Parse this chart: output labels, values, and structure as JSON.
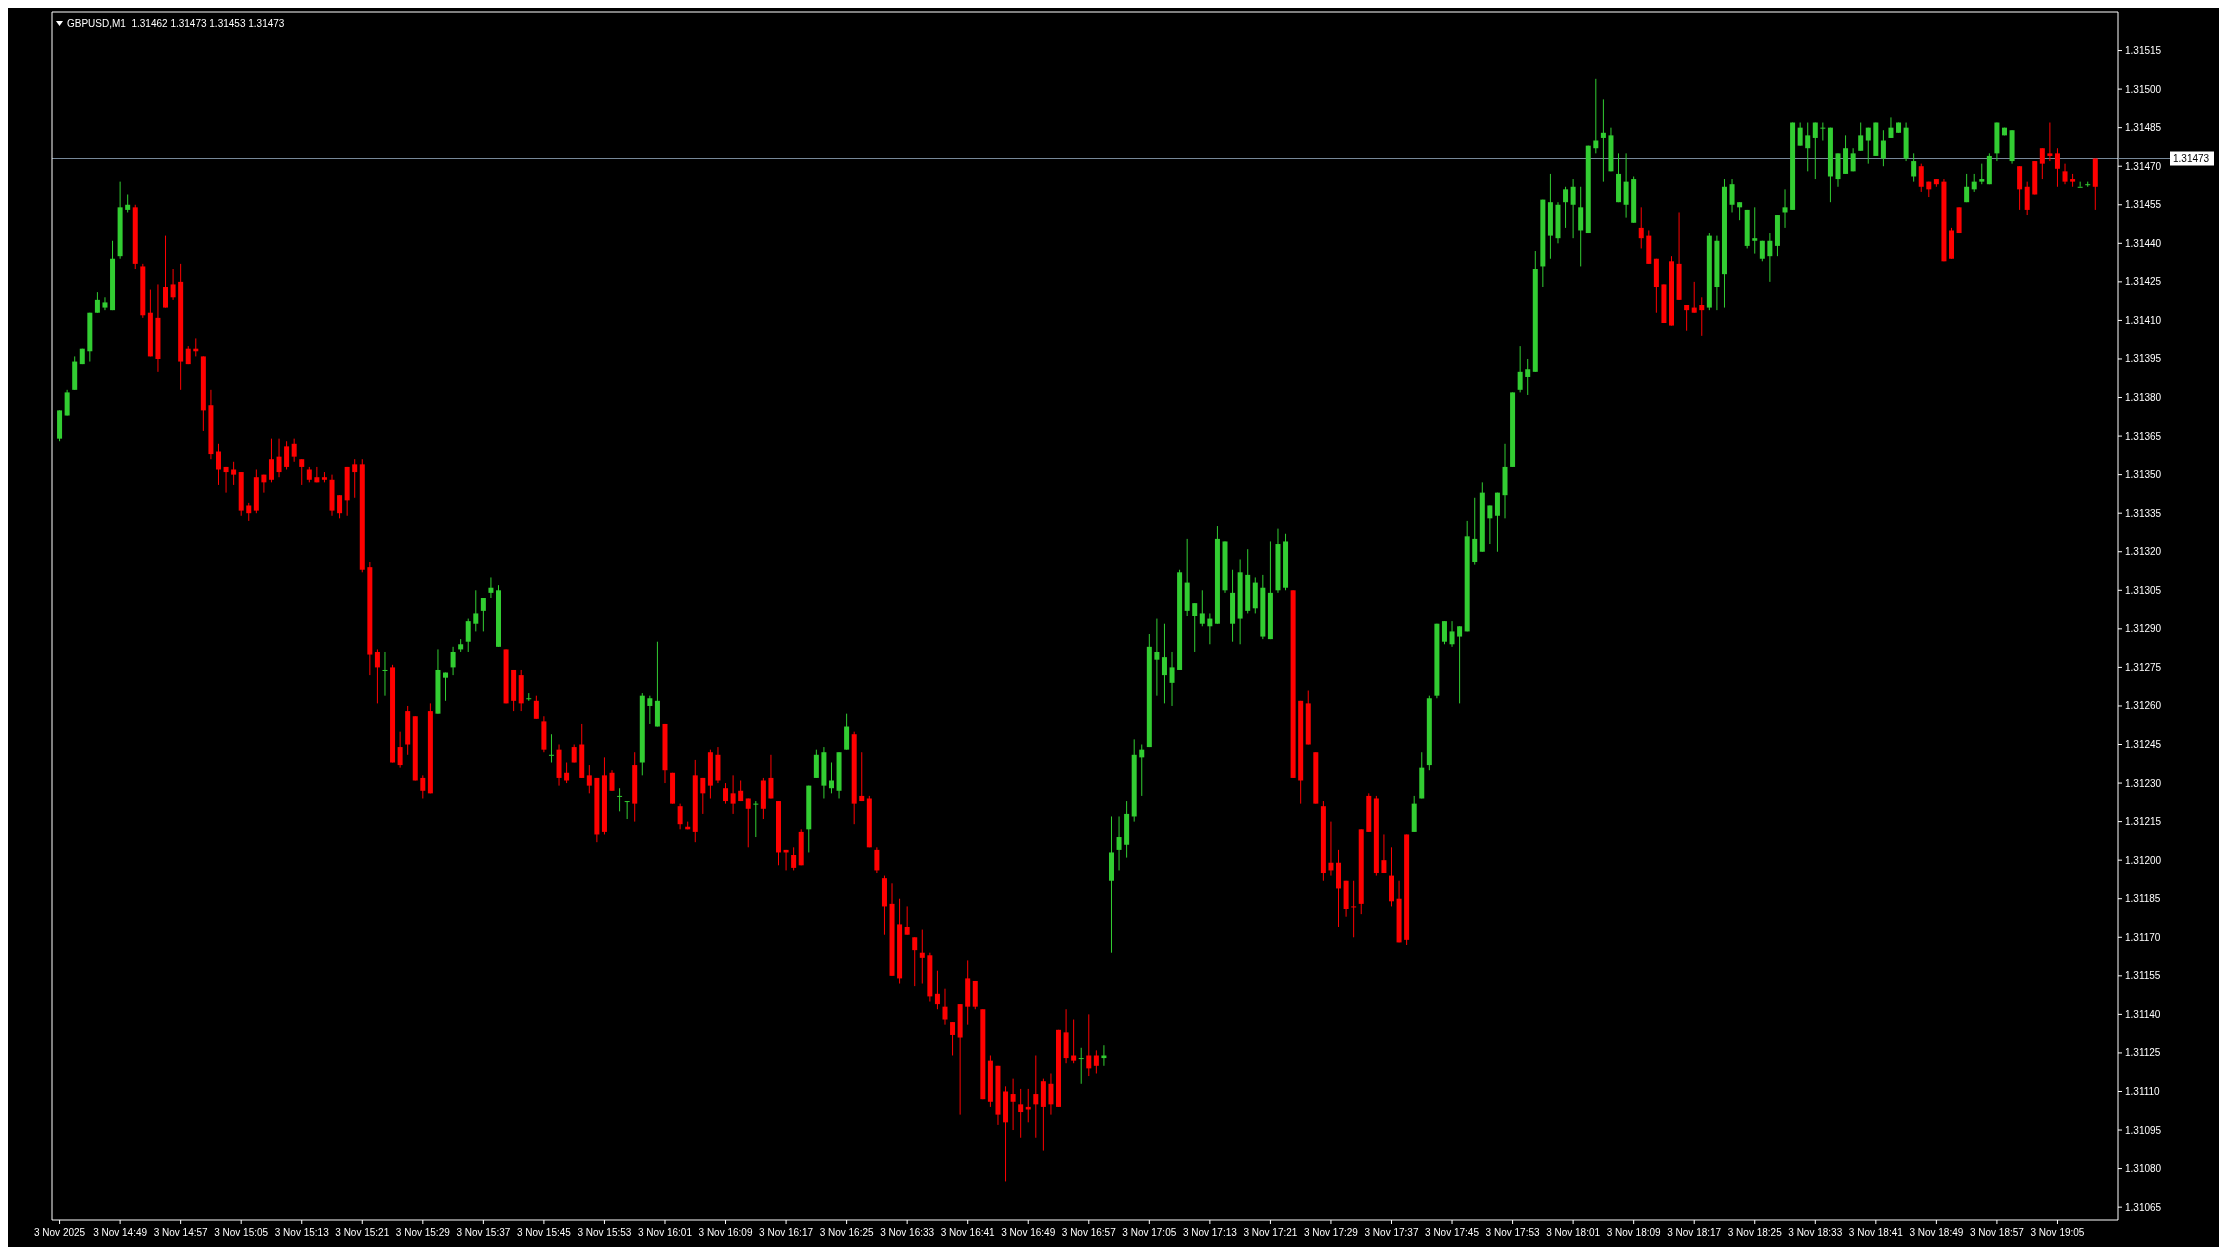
{
  "chart_data": {
    "type": "candlestick",
    "title": "GBPUSD,M1  1.31462 1.31473 1.31453 1.31473",
    "x": [
      "2025-11-03T14:41",
      "2025-11-03T14:42",
      "2025-11-03T14:43",
      "2025-11-03T14:44",
      "2025-11-03T14:45",
      "2025-11-03T14:46",
      "2025-11-03T14:47",
      "2025-11-03T14:48",
      "2025-11-03T14:49",
      "2025-11-03T14:50",
      "2025-11-03T14:51",
      "2025-11-03T14:52",
      "2025-11-03T14:53",
      "2025-11-03T14:54",
      "2025-11-03T14:55",
      "2025-11-03T14:56",
      "2025-11-03T14:57",
      "2025-11-03T14:58",
      "2025-11-03T14:59",
      "2025-11-03T15:00",
      "2025-11-03T15:01",
      "2025-11-03T15:02",
      "2025-11-03T15:03",
      "2025-11-03T15:04",
      "2025-11-03T15:05",
      "2025-11-03T15:06",
      "2025-11-03T15:07",
      "2025-11-03T15:08",
      "2025-11-03T15:09",
      "2025-11-03T15:10",
      "2025-11-03T15:11",
      "2025-11-03T15:12",
      "2025-11-03T15:13",
      "2025-11-03T15:14",
      "2025-11-03T15:15",
      "2025-11-03T15:16",
      "2025-11-03T15:17",
      "2025-11-03T15:18",
      "2025-11-03T15:19",
      "2025-11-03T15:20",
      "2025-11-03T15:21",
      "2025-11-03T15:22",
      "2025-11-03T15:23",
      "2025-11-03T15:24",
      "2025-11-03T15:25",
      "2025-11-03T15:26",
      "2025-11-03T15:27",
      "2025-11-03T15:28",
      "2025-11-03T15:29",
      "2025-11-03T15:30",
      "2025-11-03T15:31",
      "2025-11-03T15:32",
      "2025-11-03T15:33",
      "2025-11-03T15:34",
      "2025-11-03T15:35",
      "2025-11-03T15:36",
      "2025-11-03T15:37",
      "2025-11-03T15:38",
      "2025-11-03T15:39",
      "2025-11-03T15:40",
      "2025-11-03T15:41",
      "2025-11-03T15:42",
      "2025-11-03T15:43",
      "2025-11-03T15:44",
      "2025-11-03T15:45",
      "2025-11-03T15:46",
      "2025-11-03T15:47",
      "2025-11-03T15:48",
      "2025-11-03T15:49",
      "2025-11-03T15:50",
      "2025-11-03T15:51",
      "2025-11-03T15:52",
      "2025-11-03T15:53",
      "2025-11-03T15:54",
      "2025-11-03T15:55",
      "2025-11-03T15:56",
      "2025-11-03T15:57",
      "2025-11-03T15:58",
      "2025-11-03T15:59",
      "2025-11-03T16:00",
      "2025-11-03T16:01",
      "2025-11-03T16:02",
      "2025-11-03T16:03",
      "2025-11-03T16:04",
      "2025-11-03T16:05",
      "2025-11-03T16:06",
      "2025-11-03T16:07",
      "2025-11-03T16:08",
      "2025-11-03T16:09",
      "2025-11-03T16:10",
      "2025-11-03T16:11",
      "2025-11-03T16:12",
      "2025-11-03T16:13",
      "2025-11-03T16:14",
      "2025-11-03T16:15",
      "2025-11-03T16:16",
      "2025-11-03T16:17",
      "2025-11-03T16:18",
      "2025-11-03T16:19",
      "2025-11-03T16:20",
      "2025-11-03T16:21",
      "2025-11-03T16:22",
      "2025-11-03T16:23",
      "2025-11-03T16:24",
      "2025-11-03T16:25",
      "2025-11-03T16:26",
      "2025-11-03T16:27",
      "2025-11-03T16:28",
      "2025-11-03T16:29",
      "2025-11-03T16:30",
      "2025-11-03T16:31",
      "2025-11-03T16:32",
      "2025-11-03T16:33",
      "2025-11-03T16:34",
      "2025-11-03T16:35",
      "2025-11-03T16:36",
      "2025-11-03T16:37",
      "2025-11-03T16:38",
      "2025-11-03T16:39",
      "2025-11-03T16:40",
      "2025-11-03T16:41",
      "2025-11-03T16:42",
      "2025-11-03T16:43",
      "2025-11-03T16:44",
      "2025-11-03T16:45",
      "2025-11-03T16:46",
      "2025-11-03T16:47",
      "2025-11-03T16:48",
      "2025-11-03T16:49",
      "2025-11-03T16:50",
      "2025-11-03T16:51",
      "2025-11-03T16:52",
      "2025-11-03T16:53",
      "2025-11-03T16:54",
      "2025-11-03T16:55",
      "2025-11-03T16:56",
      "2025-11-03T16:57",
      "2025-11-03T16:58",
      "2025-11-03T16:59",
      "2025-11-03T17:00",
      "2025-11-03T17:01",
      "2025-11-03T17:02",
      "2025-11-03T17:03",
      "2025-11-03T17:04",
      "2025-11-03T17:05",
      "2025-11-03T17:06",
      "2025-11-03T17:07",
      "2025-11-03T17:08",
      "2025-11-03T17:09",
      "2025-11-03T17:10",
      "2025-11-03T17:11",
      "2025-11-03T17:12",
      "2025-11-03T17:13",
      "2025-11-03T17:14",
      "2025-11-03T17:15",
      "2025-11-03T17:16",
      "2025-11-03T17:17",
      "2025-11-03T17:18",
      "2025-11-03T17:19",
      "2025-11-03T17:20",
      "2025-11-03T17:21",
      "2025-11-03T17:22",
      "2025-11-03T17:23",
      "2025-11-03T17:24",
      "2025-11-03T17:25",
      "2025-11-03T17:26",
      "2025-11-03T17:27",
      "2025-11-03T17:28",
      "2025-11-03T17:29",
      "2025-11-03T17:30",
      "2025-11-03T17:31",
      "2025-11-03T17:32",
      "2025-11-03T17:33",
      "2025-11-03T17:34",
      "2025-11-03T17:35",
      "2025-11-03T17:36",
      "2025-11-03T17:37",
      "2025-11-03T17:38",
      "2025-11-03T17:39",
      "2025-11-03T17:40",
      "2025-11-03T17:41",
      "2025-11-03T17:42",
      "2025-11-03T17:43",
      "2025-11-03T17:44",
      "2025-11-03T17:45",
      "2025-11-03T17:46",
      "2025-11-03T17:47",
      "2025-11-03T17:48",
      "2025-11-03T17:49",
      "2025-11-03T17:50",
      "2025-11-03T17:51",
      "2025-11-03T17:52",
      "2025-11-03T17:53",
      "2025-11-03T17:54",
      "2025-11-03T17:55",
      "2025-11-03T17:56",
      "2025-11-03T17:57",
      "2025-11-03T17:58",
      "2025-11-03T17:59",
      "2025-11-03T18:00",
      "2025-11-03T18:01",
      "2025-11-03T18:02",
      "2025-11-03T18:03",
      "2025-11-03T18:04",
      "2025-11-03T18:05",
      "2025-11-03T18:06",
      "2025-11-03T18:07",
      "2025-11-03T18:08",
      "2025-11-03T18:09",
      "2025-11-03T18:10",
      "2025-11-03T18:11",
      "2025-11-03T18:12",
      "2025-11-03T18:13",
      "2025-11-03T18:14",
      "2025-11-03T18:15",
      "2025-11-03T18:16",
      "2025-11-03T18:17",
      "2025-11-03T18:18",
      "2025-11-03T18:19",
      "2025-11-03T18:20",
      "2025-11-03T18:21",
      "2025-11-03T18:22",
      "2025-11-03T18:23",
      "2025-11-03T18:24",
      "2025-11-03T18:25",
      "2025-11-03T18:26",
      "2025-11-03T18:27",
      "2025-11-03T18:28",
      "2025-11-03T18:29",
      "2025-11-03T18:30",
      "2025-11-03T18:31",
      "2025-11-03T18:32",
      "2025-11-03T18:33",
      "2025-11-03T18:34",
      "2025-11-03T18:35",
      "2025-11-03T18:36",
      "2025-11-03T18:37",
      "2025-11-03T18:38",
      "2025-11-03T18:39",
      "2025-11-03T18:40",
      "2025-11-03T18:41",
      "2025-11-03T18:42",
      "2025-11-03T18:43",
      "2025-11-03T18:44",
      "2025-11-03T18:45",
      "2025-11-03T18:46",
      "2025-11-03T18:47",
      "2025-11-03T18:48",
      "2025-11-03T18:49",
      "2025-11-03T18:50",
      "2025-11-03T18:51",
      "2025-11-03T18:52",
      "2025-11-03T18:53",
      "2025-11-03T18:54",
      "2025-11-03T18:55",
      "2025-11-03T18:56",
      "2025-11-03T18:57",
      "2025-11-03T18:58",
      "2025-11-03T18:59",
      "2025-11-03T19:00",
      "2025-11-03T19:01",
      "2025-11-03T19:02",
      "2025-11-03T19:03",
      "2025-11-03T19:04",
      "2025-11-03T19:05",
      "2025-11-03T19:06",
      "2025-11-03T19:07",
      "2025-11-03T19:08",
      "2025-11-03T19:09",
      "2025-11-03T19:10"
    ],
    "ohlc": [
      [
        1.31364,
        1.31375,
        1.31363,
        1.31375
      ],
      [
        1.31373,
        1.31383,
        1.31373,
        1.31382
      ],
      [
        1.31383,
        1.31396,
        1.31383,
        1.31394
      ],
      [
        1.31393,
        1.31399,
        1.31393,
        1.31399
      ],
      [
        1.31398,
        1.31413,
        1.31394,
        1.31413
      ],
      [
        1.31413,
        1.31421,
        1.31413,
        1.31418
      ],
      [
        1.31415,
        1.31419,
        1.31414,
        1.31417
      ],
      [
        1.31414,
        1.31441,
        1.31414,
        1.31434
      ],
      [
        1.31435,
        1.31464,
        1.31434,
        1.31454
      ],
      [
        1.31453,
        1.31459,
        1.31452,
        1.31455
      ],
      [
        1.31454,
        1.31455,
        1.3143,
        1.31432
      ],
      [
        1.31431,
        1.31432,
        1.31411,
        1.31412
      ],
      [
        1.31413,
        1.31422,
        1.31396,
        1.31396
      ],
      [
        1.31411,
        1.31424,
        1.3139,
        1.31395
      ],
      [
        1.31423,
        1.31443,
        1.31415,
        1.31415
      ],
      [
        1.31424,
        1.3143,
        1.31418,
        1.31419
      ],
      [
        1.31425,
        1.31432,
        1.31383,
        1.31394
      ],
      [
        1.31399,
        1.314,
        1.31393,
        1.31393
      ],
      [
        1.31399,
        1.31403,
        1.31396,
        1.31398
      ],
      [
        1.31396,
        1.31396,
        1.31367,
        1.31375
      ],
      [
        1.31377,
        1.31383,
        1.31356,
        1.31358
      ],
      [
        1.31359,
        1.31362,
        1.31346,
        1.31352
      ],
      [
        1.31353,
        1.31353,
        1.31343,
        1.31351
      ],
      [
        1.31352,
        1.31355,
        1.31346,
        1.3135
      ],
      [
        1.31351,
        1.31351,
        1.31334,
        1.31336
      ],
      [
        1.31338,
        1.31339,
        1.31332,
        1.31335
      ],
      [
        1.31349,
        1.31352,
        1.31335,
        1.31336
      ],
      [
        1.3135,
        1.3135,
        1.31343,
        1.31347
      ],
      [
        1.31356,
        1.31364,
        1.31347,
        1.31348
      ],
      [
        1.31357,
        1.31364,
        1.31349,
        1.31351
      ],
      [
        1.31361,
        1.31363,
        1.31352,
        1.31353
      ],
      [
        1.31362,
        1.31364,
        1.31355,
        1.31357
      ],
      [
        1.31356,
        1.31356,
        1.31346,
        1.31353
      ],
      [
        1.31352,
        1.31353,
        1.31347,
        1.31348
      ],
      [
        1.31349,
        1.31353,
        1.31347,
        1.31347
      ],
      [
        1.31349,
        1.31351,
        1.31347,
        1.31348
      ],
      [
        1.31348,
        1.3135,
        1.31334,
        1.31336
      ],
      [
        1.31342,
        1.31342,
        1.31333,
        1.31335
      ],
      [
        1.31353,
        1.31353,
        1.31334,
        1.3134
      ],
      [
        1.31354,
        1.31356,
        1.31341,
        1.31351
      ],
      [
        1.31354,
        1.31356,
        1.31312,
        1.31313
      ],
      [
        1.31314,
        1.31316,
        1.31272,
        1.3128
      ],
      [
        1.31281,
        1.31282,
        1.31261,
        1.31275
      ],
      [
        1.31274,
        1.31281,
        1.31264,
        1.31274
      ],
      [
        1.31275,
        1.31276,
        1.31238,
        1.31238
      ],
      [
        1.31244,
        1.3125,
        1.31236,
        1.31237
      ],
      [
        1.31258,
        1.3126,
        1.31241,
        1.31245
      ],
      [
        1.31256,
        1.31256,
        1.31231,
        1.31231
      ],
      [
        1.31232,
        1.31233,
        1.31224,
        1.31227
      ],
      [
        1.31258,
        1.31261,
        1.31226,
        1.31226
      ],
      [
        1.31257,
        1.31282,
        1.31257,
        1.31274
      ],
      [
        1.31271,
        1.31273,
        1.31262,
        1.31273
      ],
      [
        1.31275,
        1.31283,
        1.31272,
        1.31281
      ],
      [
        1.31282,
        1.31286,
        1.31281,
        1.31284
      ],
      [
        1.31285,
        1.31294,
        1.31281,
        1.31293
      ],
      [
        1.31292,
        1.31305,
        1.31289,
        1.31296
      ],
      [
        1.31297,
        1.31302,
        1.31289,
        1.31302
      ],
      [
        1.31304,
        1.3131,
        1.31302,
        1.31306
      ],
      [
        1.31283,
        1.31307,
        1.31283,
        1.31305
      ],
      [
        1.31282,
        1.31282,
        1.31261,
        1.31261
      ],
      [
        1.31274,
        1.31274,
        1.31258,
        1.31262
      ],
      [
        1.31272,
        1.31274,
        1.31258,
        1.31261
      ],
      [
        1.31263,
        1.31265,
        1.31262,
        1.31263
      ],
      [
        1.31262,
        1.31264,
        1.31255,
        1.31255
      ],
      [
        1.31254,
        1.31256,
        1.31242,
        1.31243
      ],
      [
        1.31241,
        1.31249,
        1.31238,
        1.31241
      ],
      [
        1.31243,
        1.31245,
        1.31229,
        1.31232
      ],
      [
        1.31234,
        1.31238,
        1.3123,
        1.31231
      ],
      [
        1.31244,
        1.31245,
        1.31238,
        1.31238
      ],
      [
        1.31245,
        1.31253,
        1.31232,
        1.31232
      ],
      [
        1.31233,
        1.31237,
        1.31226,
        1.31229
      ],
      [
        1.31232,
        1.31232,
        1.31207,
        1.3121
      ],
      [
        1.31233,
        1.3124,
        1.3121,
        1.31211
      ],
      [
        1.31234,
        1.31235,
        1.31227,
        1.31227
      ],
      [
        1.31225,
        1.31228,
        1.31219,
        1.31225
      ],
      [
        1.31223,
        1.31223,
        1.31216,
        1.31223
      ],
      [
        1.31237,
        1.31242,
        1.31215,
        1.31222
      ],
      [
        1.31238,
        1.31265,
        1.31233,
        1.31264
      ],
      [
        1.3126,
        1.31264,
        1.31253,
        1.31263
      ],
      [
        1.31252,
        1.31285,
        1.31252,
        1.31262
      ],
      [
        1.31253,
        1.31253,
        1.3123,
        1.31235
      ],
      [
        1.31234,
        1.31234,
        1.31222,
        1.31222
      ],
      [
        1.31221,
        1.31222,
        1.31212,
        1.31214
      ],
      [
        1.31213,
        1.31215,
        1.31212,
        1.31212
      ],
      [
        1.31233,
        1.31239,
        1.31207,
        1.31211
      ],
      [
        1.31232,
        1.31232,
        1.31218,
        1.31226
      ],
      [
        1.31242,
        1.31243,
        1.31224,
        1.31229
      ],
      [
        1.31241,
        1.31244,
        1.3123,
        1.31231
      ],
      [
        1.31228,
        1.3123,
        1.31222,
        1.31223
      ],
      [
        1.31226,
        1.31233,
        1.31218,
        1.31222
      ],
      [
        1.31227,
        1.31231,
        1.31223,
        1.31223
      ],
      [
        1.31224,
        1.31224,
        1.31205,
        1.3122
      ],
      [
        1.31222,
        1.31223,
        1.31209,
        1.31222
      ],
      [
        1.31231,
        1.31232,
        1.31216,
        1.3122
      ],
      [
        1.31232,
        1.31241,
        1.31224,
        1.31224
      ],
      [
        1.31223,
        1.31223,
        1.31198,
        1.31203
      ],
      [
        1.31204,
        1.31204,
        1.31196,
        1.31203
      ],
      [
        1.31202,
        1.31205,
        1.31196,
        1.31197
      ],
      [
        1.31211,
        1.31212,
        1.31198,
        1.31198
      ],
      [
        1.31212,
        1.31229,
        1.31203,
        1.31229
      ],
      [
        1.31232,
        1.31243,
        1.31232,
        1.31241
      ],
      [
        1.31229,
        1.31244,
        1.31224,
        1.31242
      ],
      [
        1.31228,
        1.31238,
        1.31226,
        1.31231
      ],
      [
        1.31227,
        1.31242,
        1.31224,
        1.31242
      ],
      [
        1.31243,
        1.31257,
        1.31243,
        1.31252
      ],
      [
        1.31249,
        1.3125,
        1.31214,
        1.31222
      ],
      [
        1.31225,
        1.31242,
        1.31223,
        1.31223
      ],
      [
        1.31224,
        1.31225,
        1.31205,
        1.31205
      ],
      [
        1.31204,
        1.31205,
        1.31195,
        1.31196
      ],
      [
        1.31193,
        1.31194,
        1.31171,
        1.31182
      ],
      [
        1.31183,
        1.31191,
        1.31155,
        1.31155
      ],
      [
        1.31175,
        1.31185,
        1.31152,
        1.31154
      ],
      [
        1.31174,
        1.31182,
        1.31171,
        1.31171
      ],
      [
        1.3117,
        1.3117,
        1.31151,
        1.31165
      ],
      [
        1.31164,
        1.31173,
        1.31152,
        1.31162
      ],
      [
        1.31163,
        1.31164,
        1.31145,
        1.31147
      ],
      [
        1.31148,
        1.31157,
        1.31142,
        1.31144
      ],
      [
        1.31143,
        1.3115,
        1.31136,
        1.31138
      ],
      [
        1.31137,
        1.31137,
        1.31124,
        1.31132
      ],
      [
        1.31144,
        1.31144,
        1.31101,
        1.31131
      ],
      [
        1.31154,
        1.31161,
        1.31136,
        1.31143
      ],
      [
        1.31153,
        1.31153,
        1.31142,
        1.31143
      ],
      [
        1.31142,
        1.31142,
        1.31107,
        1.31107
      ],
      [
        1.31122,
        1.31124,
        1.31104,
        1.31106
      ],
      [
        1.3112,
        1.3112,
        1.31097,
        1.31101
      ],
      [
        1.3111,
        1.31112,
        1.31075,
        1.31098
      ],
      [
        1.31109,
        1.31115,
        1.31095,
        1.31106
      ],
      [
        1.31105,
        1.31111,
        1.31092,
        1.31102
      ],
      [
        1.31104,
        1.31111,
        1.31098,
        1.31103
      ],
      [
        1.31109,
        1.31124,
        1.31092,
        1.31105
      ],
      [
        1.31114,
        1.31115,
        1.31087,
        1.31104
      ],
      [
        1.31113,
        1.31117,
        1.31101,
        1.31105
      ],
      [
        1.31134,
        1.31134,
        1.31104,
        1.31104
      ],
      [
        1.31133,
        1.31142,
        1.31121,
        1.31123
      ],
      [
        1.31124,
        1.31138,
        1.31121,
        1.31122
      ],
      [
        1.31123,
        1.31127,
        1.31113,
        1.31123
      ],
      [
        1.31124,
        1.3114,
        1.31116,
        1.31119
      ],
      [
        1.31124,
        1.31126,
        1.31117,
        1.3112
      ],
      [
        1.31123,
        1.31128,
        1.3112,
        1.31124
      ],
      [
        1.31192,
        1.31217,
        1.31164,
        1.31203
      ],
      [
        1.31204,
        1.31217,
        1.31196,
        1.31209
      ],
      [
        1.31206,
        1.31223,
        1.31201,
        1.31218
      ],
      [
        1.31217,
        1.31247,
        1.31215,
        1.31241
      ],
      [
        1.3124,
        1.31245,
        1.31225,
        1.31243
      ],
      [
        1.31244,
        1.31288,
        1.31244,
        1.31283
      ],
      [
        1.31278,
        1.31294,
        1.31264,
        1.31281
      ],
      [
        1.31272,
        1.31292,
        1.31261,
        1.31279
      ],
      [
        1.31269,
        1.31281,
        1.3126,
        1.31275
      ],
      [
        1.31274,
        1.31313,
        1.31274,
        1.31312
      ],
      [
        1.31297,
        1.31325,
        1.31295,
        1.31308
      ],
      [
        1.31295,
        1.313,
        1.31281,
        1.313
      ],
      [
        1.31292,
        1.31305,
        1.31291,
        1.31296
      ],
      [
        1.31291,
        1.31296,
        1.31284,
        1.31294
      ],
      [
        1.31292,
        1.3133,
        1.31292,
        1.31325
      ],
      [
        1.31305,
        1.31324,
        1.31304,
        1.31324
      ],
      [
        1.31292,
        1.31313,
        1.31285,
        1.31304
      ],
      [
        1.31294,
        1.31317,
        1.31284,
        1.31312
      ],
      [
        1.31297,
        1.31321,
        1.31296,
        1.31311
      ],
      [
        1.31298,
        1.3131,
        1.31296,
        1.31308
      ],
      [
        1.31287,
        1.31311,
        1.31286,
        1.31306
      ],
      [
        1.31286,
        1.31324,
        1.31286,
        1.31304
      ],
      [
        1.31305,
        1.31329,
        1.31304,
        1.31323
      ],
      [
        1.31306,
        1.31327,
        1.31305,
        1.31324
      ],
      [
        1.31305,
        1.31305,
        1.31232,
        1.31232
      ],
      [
        1.31262,
        1.31262,
        1.31222,
        1.31231
      ],
      [
        1.31261,
        1.31266,
        1.31245,
        1.31245
      ],
      [
        1.31242,
        1.31242,
        1.31222,
        1.31222
      ],
      [
        1.31221,
        1.31223,
        1.31192,
        1.31195
      ],
      [
        1.31199,
        1.31215,
        1.31194,
        1.31196
      ],
      [
        1.31199,
        1.31204,
        1.31174,
        1.31189
      ],
      [
        1.31192,
        1.31192,
        1.31178,
        1.31181
      ],
      [
        1.31182,
        1.31192,
        1.3117,
        1.31182
      ],
      [
        1.31212,
        1.31212,
        1.31179,
        1.31183
      ],
      [
        1.31225,
        1.31226,
        1.31211,
        1.31211
      ],
      [
        1.31224,
        1.31225,
        1.31194,
        1.31195
      ],
      [
        1.312,
        1.3121,
        1.31195,
        1.31195
      ],
      [
        1.31194,
        1.31205,
        1.31182,
        1.31184
      ],
      [
        1.31185,
        1.31192,
        1.31168,
        1.31168
      ],
      [
        1.3121,
        1.3121,
        1.31167,
        1.31169
      ],
      [
        1.31211,
        1.31225,
        1.31211,
        1.31222
      ],
      [
        1.31224,
        1.31242,
        1.31224,
        1.31236
      ],
      [
        1.31237,
        1.31264,
        1.31235,
        1.31263
      ],
      [
        1.31264,
        1.31292,
        1.31263,
        1.31292
      ],
      [
        1.31285,
        1.31293,
        1.31284,
        1.31293
      ],
      [
        1.31284,
        1.31293,
        1.31283,
        1.31289
      ],
      [
        1.31287,
        1.31291,
        1.31261,
        1.31291
      ],
      [
        1.31289,
        1.31332,
        1.31289,
        1.31326
      ],
      [
        1.31316,
        1.31341,
        1.31315,
        1.31325
      ],
      [
        1.3132,
        1.31347,
        1.3132,
        1.31343
      ],
      [
        1.31333,
        1.31338,
        1.31323,
        1.31338
      ],
      [
        1.31334,
        1.31343,
        1.3132,
        1.31343
      ],
      [
        1.31342,
        1.31362,
        1.31333,
        1.31353
      ],
      [
        1.31353,
        1.31382,
        1.31353,
        1.31382
      ],
      [
        1.31383,
        1.314,
        1.31382,
        1.3139
      ],
      [
        1.31388,
        1.31395,
        1.31381,
        1.31391
      ],
      [
        1.3139,
        1.31437,
        1.3139,
        1.3143
      ],
      [
        1.31431,
        1.31457,
        1.31423,
        1.31457
      ],
      [
        1.31443,
        1.31467,
        1.31434,
        1.31456
      ],
      [
        1.31442,
        1.31456,
        1.3144,
        1.31455
      ],
      [
        1.31456,
        1.31462,
        1.31446,
        1.31461
      ],
      [
        1.31455,
        1.31465,
        1.31442,
        1.31462
      ],
      [
        1.31445,
        1.31462,
        1.31431,
        1.31454
      ],
      [
        1.31444,
        1.31478,
        1.31444,
        1.31478
      ],
      [
        1.31477,
        1.31504,
        1.31475,
        1.3148
      ],
      [
        1.31481,
        1.31496,
        1.31464,
        1.31483
      ],
      [
        1.31468,
        1.31485,
        1.31468,
        1.31482
      ],
      [
        1.31456,
        1.31475,
        1.31456,
        1.31467
      ],
      [
        1.31455,
        1.31475,
        1.3145,
        1.31464
      ],
      [
        1.31448,
        1.31466,
        1.31448,
        1.31465
      ],
      [
        1.31446,
        1.31454,
        1.31438,
        1.31442
      ],
      [
        1.31443,
        1.31445,
        1.31432,
        1.31432
      ],
      [
        1.31434,
        1.31434,
        1.31413,
        1.31423
      ],
      [
        1.31424,
        1.31424,
        1.31409,
        1.31409
      ],
      [
        1.31433,
        1.31435,
        1.31408,
        1.31408
      ],
      [
        1.31432,
        1.31452,
        1.31418,
        1.31418
      ],
      [
        1.31416,
        1.31416,
        1.31406,
        1.31414
      ],
      [
        1.31415,
        1.31425,
        1.31413,
        1.31413
      ],
      [
        1.31416,
        1.31419,
        1.31404,
        1.31414
      ],
      [
        1.31415,
        1.31444,
        1.31414,
        1.31443
      ],
      [
        1.31423,
        1.31443,
        1.31414,
        1.31441
      ],
      [
        1.31428,
        1.31465,
        1.31415,
        1.31462
      ],
      [
        1.31455,
        1.31465,
        1.31452,
        1.31463
      ],
      [
        1.31454,
        1.31456,
        1.31449,
        1.31456
      ],
      [
        1.31439,
        1.31453,
        1.31438,
        1.31453
      ],
      [
        1.31441,
        1.31454,
        1.31436,
        1.31442
      ],
      [
        1.31434,
        1.31441,
        1.31433,
        1.31441
      ],
      [
        1.31435,
        1.31444,
        1.31425,
        1.31441
      ],
      [
        1.31439,
        1.31451,
        1.31435,
        1.31451
      ],
      [
        1.31452,
        1.31461,
        1.31446,
        1.31454
      ],
      [
        1.31453,
        1.31487,
        1.31453,
        1.31487
      ],
      [
        1.31478,
        1.31487,
        1.31478,
        1.31485
      ],
      [
        1.31477,
        1.31487,
        1.31468,
        1.31482
      ],
      [
        1.31481,
        1.31487,
        1.31465,
        1.31487
      ],
      [
        1.31485,
        1.31487,
        1.3148,
        1.31485
      ],
      [
        1.31466,
        1.31485,
        1.31456,
        1.31485
      ],
      [
        1.31465,
        1.31475,
        1.31462,
        1.31475
      ],
      [
        1.31467,
        1.31482,
        1.31467,
        1.31477
      ],
      [
        1.31468,
        1.31477,
        1.31468,
        1.31475
      ],
      [
        1.31476,
        1.31487,
        1.31476,
        1.31482
      ],
      [
        1.3148,
        1.31485,
        1.31471,
        1.31485
      ],
      [
        1.31474,
        1.31487,
        1.31474,
        1.31487
      ],
      [
        1.31473,
        1.31484,
        1.3147,
        1.3148
      ],
      [
        1.31481,
        1.31489,
        1.31481,
        1.31485
      ],
      [
        1.31483,
        1.31487,
        1.31483,
        1.31487
      ],
      [
        1.31473,
        1.31487,
        1.31472,
        1.31485
      ],
      [
        1.31466,
        1.31475,
        1.31464,
        1.31472
      ],
      [
        1.3147,
        1.31471,
        1.3146,
        1.31462
      ],
      [
        1.31464,
        1.31464,
        1.31458,
        1.31461
      ],
      [
        1.31465,
        1.31465,
        1.31462,
        1.31463
      ],
      [
        1.31464,
        1.31465,
        1.31433,
        1.31433
      ],
      [
        1.31445,
        1.31446,
        1.31434,
        1.31434
      ],
      [
        1.31454,
        1.31454,
        1.31444,
        1.31444
      ],
      [
        1.31456,
        1.31467,
        1.31456,
        1.31462
      ],
      [
        1.31461,
        1.31467,
        1.3146,
        1.31464
      ],
      [
        1.31464,
        1.31471,
        1.31463,
        1.31465
      ],
      [
        1.31463,
        1.31475,
        1.31463,
        1.31474
      ],
      [
        1.31475,
        1.31487,
        1.31472,
        1.31487
      ],
      [
        1.31482,
        1.31485,
        1.31482,
        1.31485
      ],
      [
        1.31472,
        1.31484,
        1.31471,
        1.31484
      ],
      [
        1.3147,
        1.3147,
        1.31453,
        1.31461
      ],
      [
        1.31462,
        1.31464,
        1.31451,
        1.31453
      ],
      [
        1.31472,
        1.31472,
        1.31459,
        1.31459
      ],
      [
        1.31477,
        1.31477,
        1.31465,
        1.31471
      ],
      [
        1.31475,
        1.31487,
        1.31472,
        1.31474
      ],
      [
        1.31475,
        1.31477,
        1.31462,
        1.31469
      ],
      [
        1.31468,
        1.31471,
        1.31463,
        1.31464
      ],
      [
        1.31465,
        1.31467,
        1.31462,
        1.31464
      ],
      [
        1.31462,
        1.31464,
        1.31462,
        1.31462
      ],
      [
        1.31463,
        1.31464,
        1.31462,
        1.31463
      ],
      [
        1.31473,
        1.31473,
        1.31453,
        1.31462
      ]
    ],
    "colors": [
      "#32cd32",
      "#32cd32",
      "#32cd32",
      "#32cd32",
      "#32cd32",
      "#32cd32",
      "#32cd32",
      "#32cd32",
      "#32cd32",
      "#32cd32",
      "#ff0000",
      "#ff0000",
      "#ff0000",
      "#ff0000",
      "#ff0000",
      "#ff0000",
      "#ff0000",
      "#ff0000",
      "#ff0000",
      "#ff0000",
      "#ff0000",
      "#ff0000",
      "#ff0000",
      "#ff0000",
      "#ff0000",
      "#ff0000",
      "#ff0000",
      "#ff0000",
      "#ff0000",
      "#ff0000",
      "#ff0000",
      "#ff0000",
      "#ff0000",
      "#ff0000",
      "#ff0000",
      "#ff0000",
      "#ff0000",
      "#ff0000",
      "#ff0000",
      "#ff0000",
      "#ff0000",
      "#ff0000",
      "#ff0000",
      "#32cd32",
      "#ff0000",
      "#ff0000",
      "#ff0000",
      "#ff0000",
      "#ff0000",
      "#ff0000",
      "#32cd32",
      "#32cd32",
      "#32cd32",
      "#32cd32",
      "#32cd32",
      "#32cd32",
      "#32cd32",
      "#32cd32",
      "#32cd32",
      "#ff0000",
      "#ff0000",
      "#ff0000",
      "#32cd32",
      "#ff0000",
      "#ff0000",
      "#32cd32",
      "#ff0000",
      "#ff0000",
      "#ff0000",
      "#ff0000",
      "#ff0000",
      "#ff0000",
      "#ff0000",
      "#ff0000",
      "#32cd32",
      "#32cd32",
      "#ff0000",
      "#32cd32",
      "#32cd32",
      "#32cd32",
      "#ff0000",
      "#ff0000",
      "#ff0000",
      "#ff0000",
      "#ff0000",
      "#ff0000",
      "#ff0000",
      "#ff0000",
      "#ff0000",
      "#ff0000",
      "#ff0000",
      "#ff0000",
      "#32cd32",
      "#ff0000",
      "#ff0000",
      "#ff0000",
      "#ff0000",
      "#ff0000",
      "#ff0000",
      "#32cd32",
      "#32cd32",
      "#32cd32",
      "#32cd32",
      "#32cd32",
      "#32cd32",
      "#ff0000",
      "#ff0000",
      "#ff0000",
      "#ff0000",
      "#ff0000",
      "#ff0000",
      "#ff0000",
      "#ff0000",
      "#ff0000",
      "#ff0000",
      "#ff0000",
      "#ff0000",
      "#ff0000",
      "#ff0000",
      "#ff0000",
      "#ff0000",
      "#ff0000",
      "#ff0000",
      "#ff0000",
      "#ff0000",
      "#ff0000",
      "#ff0000",
      "#ff0000",
      "#ff0000",
      "#ff0000",
      "#ff0000",
      "#ff0000",
      "#ff0000",
      "#ff0000",
      "#ff0000",
      "#32cd32",
      "#ff0000",
      "#ff0000",
      "#32cd32",
      "#32cd32",
      "#32cd32",
      "#32cd32",
      "#32cd32",
      "#32cd32",
      "#32cd32",
      "#32cd32",
      "#32cd32",
      "#32cd32",
      "#32cd32",
      "#32cd32",
      "#32cd32",
      "#32cd32",
      "#32cd32",
      "#32cd32",
      "#32cd32",
      "#32cd32",
      "#32cd32",
      "#32cd32",
      "#32cd32",
      "#32cd32",
      "#32cd32",
      "#32cd32",
      "#32cd32",
      "#ff0000",
      "#ff0000",
      "#ff0000",
      "#ff0000",
      "#ff0000",
      "#ff0000",
      "#ff0000",
      "#ff0000",
      "#ff0000",
      "#ff0000",
      "#ff0000",
      "#ff0000",
      "#ff0000",
      "#ff0000",
      "#ff0000",
      "#ff0000",
      "#32cd32",
      "#32cd32",
      "#32cd32",
      "#32cd32",
      "#32cd32",
      "#32cd32",
      "#32cd32",
      "#32cd32",
      "#32cd32",
      "#32cd32",
      "#32cd32",
      "#32cd32",
      "#32cd32",
      "#32cd32",
      "#32cd32",
      "#32cd32",
      "#32cd32",
      "#32cd32",
      "#32cd32",
      "#32cd32",
      "#32cd32",
      "#32cd32",
      "#32cd32",
      "#32cd32",
      "#32cd32",
      "#32cd32",
      "#32cd32",
      "#32cd32",
      "#32cd32",
      "#32cd32",
      "#ff0000",
      "#ff0000",
      "#ff0000",
      "#ff0000",
      "#ff0000",
      "#ff0000",
      "#ff0000",
      "#ff0000",
      "#ff0000",
      "#32cd32",
      "#32cd32",
      "#32cd32",
      "#32cd32",
      "#32cd32",
      "#32cd32",
      "#32cd32",
      "#32cd32",
      "#32cd32",
      "#32cd32",
      "#32cd32",
      "#32cd32",
      "#32cd32",
      "#32cd32",
      "#32cd32",
      "#32cd32",
      "#32cd32",
      "#32cd32",
      "#32cd32",
      "#32cd32",
      "#32cd32",
      "#32cd32",
      "#32cd32",
      "#32cd32",
      "#32cd32",
      "#32cd32",
      "#32cd32",
      "#32cd32",
      "#ff0000",
      "#ff0000",
      "#ff0000",
      "#ff0000",
      "#ff0000",
      "#ff0000",
      "#32cd32",
      "#32cd32",
      "#32cd32",
      "#32cd32",
      "#32cd32",
      "#32cd32",
      "#32cd32",
      "#ff0000",
      "#ff0000",
      "#ff0000",
      "#ff0000",
      "#ff0000",
      "#ff0000",
      "#ff0000",
      "#ff0000",
      "#32cd32",
      "#32cd32",
      "#ff0000"
    ],
    "xlim": [
      "2025-11-03T14:40",
      "2025-11-03T19:13"
    ],
    "xticks": [
      {
        "value": "2025-11-03T14:41",
        "label": "3 Nov 2025"
      },
      {
        "value": "2025-11-03T14:49",
        "label": "3 Nov 14:49"
      },
      {
        "value": "2025-11-03T14:57",
        "label": "3 Nov 14:57"
      },
      {
        "value": "2025-11-03T15:05",
        "label": "3 Nov 15:05"
      },
      {
        "value": "2025-11-03T15:13",
        "label": "3 Nov 15:13"
      },
      {
        "value": "2025-11-03T15:21",
        "label": "3 Nov 15:21"
      },
      {
        "value": "2025-11-03T15:29",
        "label": "3 Nov 15:29"
      },
      {
        "value": "2025-11-03T15:37",
        "label": "3 Nov 15:37"
      },
      {
        "value": "2025-11-03T15:45",
        "label": "3 Nov 15:45"
      },
      {
        "value": "2025-11-03T15:53",
        "label": "3 Nov 15:53"
      },
      {
        "value": "2025-11-03T16:01",
        "label": "3 Nov 16:01"
      },
      {
        "value": "2025-11-03T16:09",
        "label": "3 Nov 16:09"
      },
      {
        "value": "2025-11-03T16:17",
        "label": "3 Nov 16:17"
      },
      {
        "value": "2025-11-03T16:25",
        "label": "3 Nov 16:25"
      },
      {
        "value": "2025-11-03T16:33",
        "label": "3 Nov 16:33"
      },
      {
        "value": "2025-11-03T16:41",
        "label": "3 Nov 16:41"
      },
      {
        "value": "2025-11-03T16:49",
        "label": "3 Nov 16:49"
      },
      {
        "value": "2025-11-03T16:57",
        "label": "3 Nov 16:57"
      },
      {
        "value": "2025-11-03T17:05",
        "label": "3 Nov 17:05"
      },
      {
        "value": "2025-11-03T17:13",
        "label": "3 Nov 17:13"
      },
      {
        "value": "2025-11-03T17:21",
        "label": "3 Nov 17:21"
      },
      {
        "value": "2025-11-03T17:29",
        "label": "3 Nov 17:29"
      },
      {
        "value": "2025-11-03T17:37",
        "label": "3 Nov 17:37"
      },
      {
        "value": "2025-11-03T17:45",
        "label": "3 Nov 17:45"
      },
      {
        "value": "2025-11-03T17:53",
        "label": "3 Nov 17:53"
      },
      {
        "value": "2025-11-03T18:01",
        "label": "3 Nov 18:01"
      },
      {
        "value": "2025-11-03T18:09",
        "label": "3 Nov 18:09"
      },
      {
        "value": "2025-11-03T18:17",
        "label": "3 Nov 18:17"
      },
      {
        "value": "2025-11-03T18:25",
        "label": "3 Nov 18:25"
      },
      {
        "value": "2025-11-03T18:33",
        "label": "3 Nov 18:33"
      },
      {
        "value": "2025-11-03T18:41",
        "label": "3 Nov 18:41"
      },
      {
        "value": "2025-11-03T18:49",
        "label": "3 Nov 18:49"
      },
      {
        "value": "2025-11-03T18:57",
        "label": "3 Nov 18:57"
      },
      {
        "value": "2025-11-03T19:05",
        "label": "3 Nov 19:05"
      }
    ],
    "ylim": [
      1.3106,
      1.3153
    ],
    "yticks": [
      1.31065,
      {
        "value": 1.3108,
        "label": "1.31080"
      },
      1.31095,
      {
        "value": 1.3111,
        "label": "1.31110"
      },
      1.31125,
      {
        "value": 1.3114,
        "label": "1.31140"
      },
      1.31155,
      {
        "value": 1.3117,
        "label": "1.31170"
      },
      1.31185,
      {
        "value": 1.312,
        "label": "1.31200"
      },
      1.31215,
      {
        "value": 1.3123,
        "label": "1.31230"
      },
      1.31245,
      {
        "value": 1.3126,
        "label": "1.31260"
      },
      1.31275,
      {
        "value": 1.3129,
        "label": "1.31290"
      },
      1.31305,
      {
        "value": 1.3132,
        "label": "1.31320"
      },
      1.31335,
      {
        "value": 1.3135,
        "label": "1.31350"
      },
      1.31365,
      {
        "value": 1.3138,
        "label": "1.31380"
      },
      1.31395,
      {
        "value": 1.3141,
        "label": "1.31410"
      },
      1.31425,
      {
        "value": 1.3144,
        "label": "1.31440"
      },
      1.31455,
      {
        "value": 1.3147,
        "label": "1.31470"
      },
      1.31485,
      {
        "value": 1.315,
        "label": "1.31500"
      },
      1.31515
    ],
    "ref_lines": [
      {
        "axis": "y",
        "value": 1.31473,
        "label": "1.31473",
        "color": "#778899"
      }
    ],
    "grid": false
  }
}
